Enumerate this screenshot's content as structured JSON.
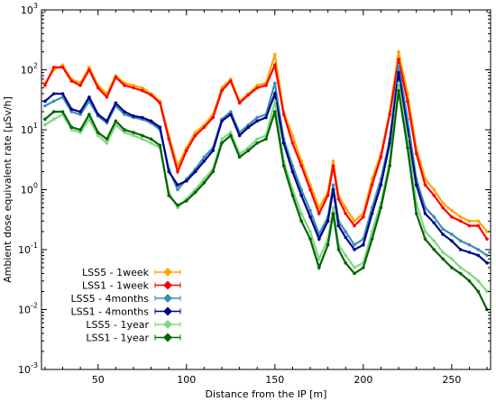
{
  "chart_data": {
    "type": "line",
    "title": "",
    "xlabel": "Distance from the IP [m]",
    "ylabel": "Ambient dose equivalent rate [µSv/h]",
    "xlim": [
      18,
      272
    ],
    "ylim": [
      0.001,
      1000
    ],
    "yscale": "log",
    "grid": false,
    "legend_position": "lower-left",
    "x_ticks": [
      50,
      100,
      150,
      200,
      250
    ],
    "y_ticks": [
      {
        "value": 0.001,
        "base": "10",
        "exp": "-3"
      },
      {
        "value": 0.01,
        "base": "10",
        "exp": "-2"
      },
      {
        "value": 0.1,
        "base": "10",
        "exp": "-1"
      },
      {
        "value": 1,
        "base": "10",
        "exp": "0"
      },
      {
        "value": 10,
        "base": "10",
        "exp": "1"
      },
      {
        "value": 100,
        "base": "10",
        "exp": "2"
      },
      {
        "value": 1000,
        "base": "10",
        "exp": "3"
      }
    ],
    "x": [
      20,
      25,
      30,
      35,
      40,
      45,
      50,
      55,
      60,
      65,
      70,
      75,
      80,
      85,
      90,
      95,
      100,
      105,
      110,
      115,
      120,
      125,
      130,
      135,
      140,
      145,
      150,
      155,
      160,
      165,
      170,
      175,
      180,
      183,
      186,
      190,
      195,
      200,
      205,
      210,
      215,
      220,
      225,
      230,
      235,
      240,
      245,
      250,
      255,
      260,
      265,
      270
    ],
    "series": [
      {
        "name": "LSS5 - 1week",
        "color": "#ffa500",
        "values": [
          60,
          100,
          120,
          70,
          60,
          110,
          55,
          40,
          80,
          60,
          55,
          50,
          40,
          30,
          8,
          2.5,
          5,
          9,
          12,
          18,
          50,
          70,
          30,
          40,
          55,
          60,
          180,
          20,
          8,
          3,
          1.2,
          0.5,
          0.9,
          3,
          0.8,
          0.5,
          0.3,
          0.4,
          1.5,
          4,
          20,
          200,
          40,
          5,
          1.5,
          1,
          0.6,
          0.45,
          0.35,
          0.3,
          0.3,
          0.2
        ]
      },
      {
        "name": "LSS1 - 1week",
        "color": "#ff0000",
        "values": [
          55,
          110,
          110,
          65,
          55,
          100,
          50,
          35,
          75,
          55,
          50,
          45,
          38,
          28,
          7,
          2,
          4.5,
          8,
          11,
          16,
          45,
          65,
          28,
          38,
          50,
          55,
          120,
          18,
          6,
          2.5,
          1,
          0.4,
          0.8,
          2.5,
          0.7,
          0.4,
          0.25,
          0.35,
          1.2,
          3.5,
          18,
          150,
          30,
          4,
          1.2,
          0.8,
          0.5,
          0.35,
          0.3,
          0.25,
          0.25,
          0.15
        ]
      },
      {
        "name": "LSS5 - 4months",
        "color": "#3b8eb5",
        "values": [
          25,
          30,
          35,
          20,
          18,
          30,
          17,
          13,
          25,
          18,
          16,
          15,
          13,
          10,
          2.2,
          1,
          1.5,
          2.2,
          3.5,
          5,
          15,
          20,
          9,
          12,
          16,
          18,
          60,
          7,
          2.5,
          1,
          0.45,
          0.18,
          0.35,
          1.2,
          0.3,
          0.2,
          0.12,
          0.15,
          0.5,
          1.5,
          7,
          120,
          15,
          1.5,
          0.5,
          0.35,
          0.22,
          0.18,
          0.14,
          0.12,
          0.1,
          0.08
        ]
      },
      {
        "name": "LSS1 - 4months",
        "color": "#00008b",
        "values": [
          30,
          40,
          40,
          22,
          20,
          35,
          18,
          14,
          28,
          20,
          17,
          16,
          14,
          11,
          2,
          1.2,
          1.4,
          2,
          3,
          4.5,
          14,
          18,
          8,
          11,
          14,
          16,
          40,
          6,
          2,
          0.8,
          0.35,
          0.15,
          0.3,
          1,
          0.25,
          0.16,
          0.1,
          0.12,
          0.4,
          1.2,
          6,
          90,
          10,
          1.2,
          0.4,
          0.28,
          0.18,
          0.14,
          0.1,
          0.09,
          0.08,
          0.06
        ]
      },
      {
        "name": "LSS5 - 1year",
        "color": "#7fd87f",
        "values": [
          12,
          15,
          18,
          10,
          9,
          15,
          8,
          6,
          12,
          9,
          8,
          7,
          6,
          5,
          0.9,
          0.5,
          0.7,
          1,
          1.5,
          2.2,
          7,
          9,
          4,
          5,
          7,
          8,
          30,
          3,
          1,
          0.4,
          0.2,
          0.07,
          0.15,
          0.5,
          0.12,
          0.08,
          0.05,
          0.06,
          0.2,
          0.6,
          3,
          60,
          7,
          0.6,
          0.2,
          0.14,
          0.09,
          0.07,
          0.05,
          0.04,
          0.03,
          0.02
        ]
      },
      {
        "name": "LSS1 - 1year",
        "color": "#006400",
        "values": [
          15,
          20,
          20,
          11,
          10,
          18,
          9,
          7,
          14,
          10,
          9,
          8,
          7,
          5.5,
          0.8,
          0.55,
          0.65,
          0.9,
          1.3,
          2,
          6,
          8,
          3.5,
          4.5,
          6,
          7,
          20,
          2.5,
          0.8,
          0.3,
          0.15,
          0.05,
          0.12,
          0.4,
          0.1,
          0.06,
          0.04,
          0.05,
          0.15,
          0.5,
          2.5,
          45,
          5,
          0.4,
          0.15,
          0.1,
          0.07,
          0.05,
          0.04,
          0.03,
          0.02,
          0.01
        ]
      }
    ]
  }
}
